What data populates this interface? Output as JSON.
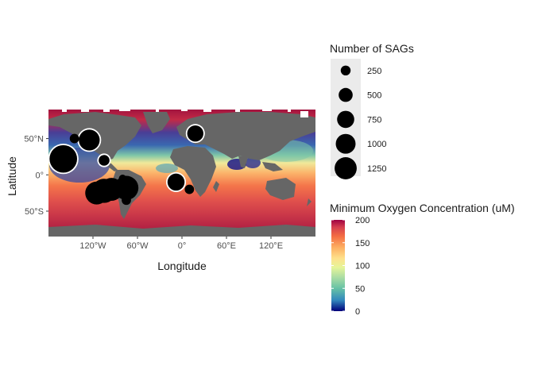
{
  "chart_data": {
    "type": "scatter",
    "map": true,
    "xlabel": "Longitude",
    "ylabel": "Latitude",
    "xlim": [
      -180,
      180
    ],
    "ylim": [
      -85,
      90
    ],
    "x_ticks": [
      {
        "value": -120,
        "label": "120°W"
      },
      {
        "value": -60,
        "label": "60°W"
      },
      {
        "value": 0,
        "label": "0°"
      },
      {
        "value": 60,
        "label": "60°E"
      },
      {
        "value": 120,
        "label": "120°E"
      }
    ],
    "y_ticks": [
      {
        "value": 50,
        "label": "50°N"
      },
      {
        "value": 0,
        "label": "0°"
      },
      {
        "value": -50,
        "label": "50°S"
      }
    ],
    "size_legend": {
      "title": "Number of SAGs",
      "breaks": [
        {
          "value": 250,
          "label": "250"
        },
        {
          "value": 500,
          "label": "500"
        },
        {
          "value": 750,
          "label": "750"
        },
        {
          "value": 1000,
          "label": "1000"
        },
        {
          "value": 1250,
          "label": "1250"
        }
      ]
    },
    "color_legend": {
      "title": "Minimum Oxygen Concentration (uM)",
      "range": [
        0,
        200
      ],
      "ticks": [
        {
          "value": 200,
          "label": "200"
        },
        {
          "value": 150,
          "label": "150"
        },
        {
          "value": 100,
          "label": "100"
        },
        {
          "value": 50,
          "label": "50"
        },
        {
          "value": 0,
          "label": "0"
        }
      ],
      "palette": [
        "#5e4fa2",
        "#3288bd",
        "#66c2a5",
        "#abdda4",
        "#e6f598",
        "#fee08b",
        "#fdae61",
        "#f46d43",
        "#d53e4f",
        "#9e0142"
      ]
    },
    "points": [
      {
        "lon": -160,
        "lat": 22,
        "sags": 1300,
        "ring": true
      },
      {
        "lon": -125,
        "lat": 48,
        "sags": 750,
        "ring": true
      },
      {
        "lon": -145,
        "lat": 50,
        "sags": 150,
        "ring": false
      },
      {
        "lon": -105,
        "lat": 20,
        "sags": 200,
        "ring": true
      },
      {
        "lon": -115,
        "lat": -25,
        "sags": 900,
        "ring": false
      },
      {
        "lon": -105,
        "lat": -22,
        "sags": 1000,
        "ring": false
      },
      {
        "lon": -95,
        "lat": -20,
        "sags": 900,
        "ring": false
      },
      {
        "lon": -75,
        "lat": -18,
        "sags": 1000,
        "ring": false
      },
      {
        "lon": -75,
        "lat": -35,
        "sags": 150,
        "ring": false
      },
      {
        "lon": -80,
        "lat": -5,
        "sags": 100,
        "ring": false
      },
      {
        "lon": -8,
        "lat": -10,
        "sags": 500,
        "ring": true
      },
      {
        "lon": -8,
        "lat": -10,
        "sags": 100,
        "ring": false
      },
      {
        "lon": 10,
        "lat": -20,
        "sags": 150,
        "ring": false
      },
      {
        "lon": 18,
        "lat": 57,
        "sags": 450,
        "ring": true
      }
    ]
  }
}
